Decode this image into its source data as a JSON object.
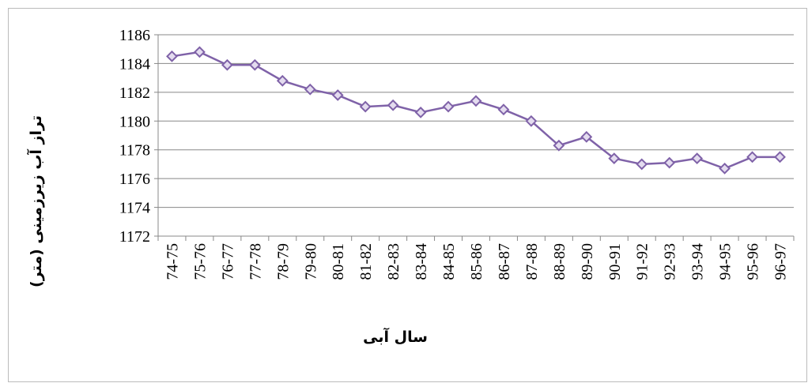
{
  "chart_data": {
    "type": "line",
    "categories": [
      "74-75",
      "75-76",
      "76-77",
      "77-78",
      "78-79",
      "79-80",
      "80-81",
      "81-82",
      "82-83",
      "83-84",
      "84-85",
      "85-86",
      "86-87",
      "87-88",
      "88-89",
      "89-90",
      "90-91",
      "91-92",
      "92-93",
      "93-94",
      "94-95",
      "95-96",
      "96-97"
    ],
    "series": [
      {
        "color": "#7f62a8",
        "values": [
          1184.5,
          1184.8,
          1183.9,
          1183.9,
          1182.8,
          1182.2,
          1181.8,
          1181.0,
          1181.1,
          1180.6,
          1181.0,
          1181.4,
          1180.8,
          1180.0,
          1178.3,
          1178.9,
          1177.4,
          1177.0,
          1177.1,
          1177.4,
          1176.7,
          1177.5,
          1177.5
        ]
      }
    ],
    "ylim": [
      1172,
      1186
    ],
    "yticks": [
      1172,
      1174,
      1176,
      1178,
      1180,
      1182,
      1184,
      1186
    ],
    "grid": true,
    "xlabel": "سال آبی",
    "ylabel": "تراز آب زیرزمینی (متر)"
  }
}
